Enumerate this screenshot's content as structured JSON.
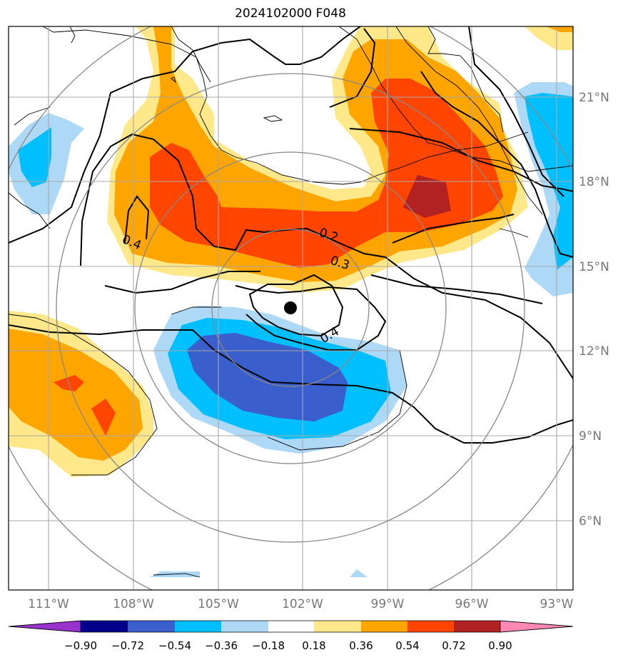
{
  "title": "2024102000 F048",
  "lon_ticks": [
    "111°W",
    "108°W",
    "105°W",
    "102°W",
    "99°W",
    "96°W",
    "93°W"
  ],
  "lat_ticks": [
    "21°N",
    "18°N",
    "15°N",
    "12°N",
    "9°N",
    "6°N"
  ],
  "contour_labels": [
    "0.4",
    "0.2",
    "0.3",
    "0.4"
  ],
  "colorbar": {
    "levels": [
      "−0.90",
      "−0.72",
      "−0.54",
      "−0.36",
      "−0.18",
      "0.18",
      "0.36",
      "0.54",
      "0.72",
      "0.90"
    ],
    "colors": [
      "#9932cc",
      "#00008b",
      "#3a5fcd",
      "#00bfff",
      "#add8f6",
      "#ffffff",
      "#ffe88a",
      "#ffa500",
      "#ff4500",
      "#b22222",
      "#ff88b5"
    ]
  },
  "storm_center_marker": "black-dot"
}
